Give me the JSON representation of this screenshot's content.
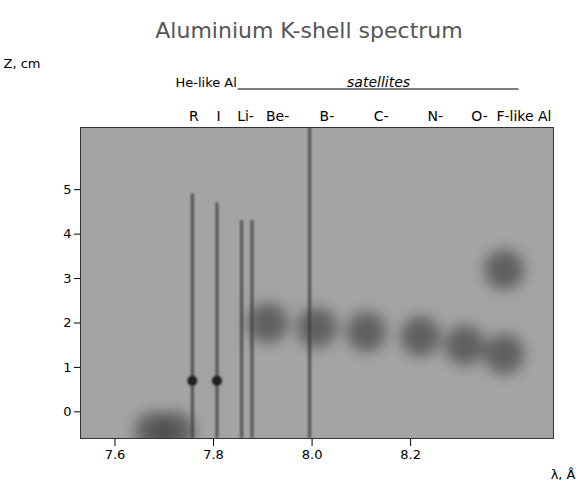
{
  "chart_data": {
    "type": "spectrogram",
    "title": "Aluminium K-shell spectrum",
    "x_label": "λ, Å",
    "y_label": "Z, cm",
    "xlim": [
      7.53,
      8.49
    ],
    "ylim": [
      -0.6,
      6.4
    ],
    "xticks": [
      7.6,
      7.8,
      {
        "value": 8.0,
        "label": "8.0"
      },
      8.2
    ],
    "yticks": [
      0,
      1,
      2,
      3,
      4,
      5
    ],
    "groups": [
      {
        "text": "He-like Al",
        "lambda": [
          7.74,
          7.83
        ]
      },
      {
        "text": "satellites",
        "lambda": [
          7.85,
          8.42
        ]
      }
    ],
    "labels": [
      {
        "text": "R",
        "lambda": 7.76
      },
      {
        "text": "I",
        "lambda": 7.81
      },
      {
        "text": "Li-",
        "lambda": 7.865
      },
      {
        "text": "Be-",
        "lambda": 7.93
      },
      {
        "text": "B-",
        "lambda": 8.03
      },
      {
        "text": "C-",
        "lambda": 8.14
      },
      {
        "text": "N-",
        "lambda": 8.25
      },
      {
        "text": "O-",
        "lambda": 8.34
      },
      {
        "text": "F-like Al",
        "lambda": 8.43
      }
    ],
    "lines": [
      {
        "lambda": 7.757,
        "z": [
          -0.6,
          4.9
        ],
        "core_z": 0.7
      },
      {
        "lambda": 7.807,
        "z": [
          -0.6,
          4.7
        ],
        "core_z": 0.7
      },
      {
        "lambda": 7.857,
        "z": [
          -0.6,
          4.3
        ],
        "core_z": null
      },
      {
        "lambda": 7.878,
        "z": [
          -0.6,
          4.3
        ],
        "core_z": null
      },
      {
        "lambda": 7.995,
        "z": [
          -0.6,
          6.4
        ],
        "core_z": null
      }
    ],
    "spots": [
      {
        "lambda": 7.91,
        "z": 2.0
      },
      {
        "lambda": 8.01,
        "z": 1.9
      },
      {
        "lambda": 8.11,
        "z": 1.8
      },
      {
        "lambda": 8.22,
        "z": 1.7
      },
      {
        "lambda": 8.31,
        "z": 1.5
      },
      {
        "lambda": 8.39,
        "z": 1.3
      },
      {
        "lambda": 8.39,
        "z": 3.2
      },
      {
        "lambda": 7.68,
        "z": -0.45
      },
      {
        "lambda": 7.72,
        "z": -0.45
      }
    ]
  }
}
